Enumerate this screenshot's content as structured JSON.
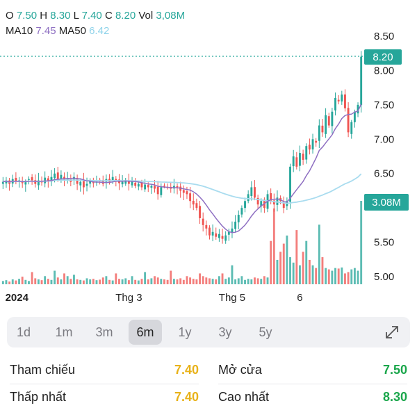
{
  "header": {
    "o_label": "O",
    "o_value": "7.50",
    "h_label": "H",
    "h_value": "8.30",
    "l_label": "L",
    "l_value": "7.40",
    "c_label": "C",
    "c_value": "8.20",
    "vol_label": "Vol",
    "vol_value": "3,08M",
    "ma10_label": "MA10",
    "ma10_value": "7.45",
    "ma50_label": "MA50",
    "ma50_value": "6.42"
  },
  "colors": {
    "up": "#26a69a",
    "down": "#ef5350",
    "ma10": "#8e6fc2",
    "ma50": "#a9dcef",
    "dotted": "#26a69a",
    "text": "#222222"
  },
  "chart_data": {
    "type": "candlestick",
    "y_ticks": [
      "8.50",
      "8.00",
      "7.50",
      "7.00",
      "6.50",
      "6.00",
      "5.50",
      "5.00"
    ],
    "y_tick_values": [
      8.5,
      8.0,
      7.5,
      7.0,
      6.5,
      6.0,
      5.5,
      5.0
    ],
    "ylim": [
      4.8,
      8.6
    ],
    "x_labels": [
      {
        "label": "2024",
        "index": 2,
        "bold": true
      },
      {
        "label": "Thg 3",
        "index": 39,
        "bold": false
      },
      {
        "label": "Thg 5",
        "index": 71,
        "bold": false
      },
      {
        "label": "6",
        "index": 92,
        "bold": false
      }
    ],
    "last_price": "8.20",
    "last_price_value": 8.2,
    "last_volume": "3.08M",
    "close": [
      6.38,
      6.4,
      6.35,
      6.42,
      6.38,
      6.4,
      6.36,
      6.38,
      6.42,
      6.4,
      6.35,
      6.4,
      6.38,
      6.44,
      6.4,
      6.45,
      6.5,
      6.42,
      6.48,
      6.4,
      6.42,
      6.38,
      6.45,
      6.35,
      6.38,
      6.3,
      6.35,
      6.4,
      6.36,
      6.38,
      6.4,
      6.35,
      6.42,
      6.38,
      6.45,
      6.4,
      6.36,
      6.38,
      6.4,
      6.35,
      6.38,
      6.32,
      6.35,
      6.3,
      6.34,
      6.3,
      6.32,
      6.28,
      6.2,
      6.3,
      6.32,
      6.3,
      6.28,
      6.32,
      6.3,
      6.25,
      6.22,
      6.2,
      6.1,
      6.05,
      6.0,
      5.85,
      5.75,
      5.7,
      5.6,
      5.65,
      5.58,
      5.62,
      5.55,
      5.6,
      5.65,
      5.7,
      5.8,
      5.9,
      6.0,
      6.1,
      6.2,
      6.3,
      6.15,
      6.05,
      6.1,
      6.0,
      6.2,
      6.1,
      6.05,
      6.15,
      6.1,
      6.0,
      6.1,
      6.6,
      6.75,
      6.6,
      6.8,
      6.7,
      6.9,
      6.85,
      7.0,
      6.95,
      7.2,
      7.1,
      7.35,
      7.2,
      7.4,
      7.6,
      7.55,
      7.65,
      7.45,
      7.1,
      7.25,
      7.4,
      7.5,
      8.2
    ],
    "volume": [
      0.12,
      0.15,
      0.1,
      0.18,
      0.14,
      0.2,
      0.28,
      0.16,
      0.12,
      0.45,
      0.22,
      0.18,
      0.15,
      0.3,
      0.2,
      0.16,
      0.5,
      0.25,
      0.18,
      0.4,
      0.3,
      0.2,
      0.35,
      0.18,
      0.16,
      0.14,
      0.22,
      0.18,
      0.2,
      0.15,
      0.17,
      0.25,
      0.3,
      0.16,
      0.14,
      0.4,
      0.2,
      0.18,
      0.22,
      0.15,
      0.3,
      0.16,
      0.14,
      0.2,
      0.45,
      0.18,
      0.22,
      0.3,
      0.25,
      0.2,
      0.18,
      0.16,
      0.5,
      0.2,
      0.18,
      0.22,
      0.16,
      0.3,
      0.25,
      0.2,
      0.18,
      0.4,
      0.3,
      0.25,
      0.22,
      0.2,
      0.18,
      0.3,
      0.4,
      0.2,
      0.25,
      0.7,
      0.18,
      0.22,
      0.3,
      0.16,
      0.2,
      0.18,
      0.25,
      0.22,
      0.2,
      0.3,
      0.25,
      1.6,
      2.8,
      0.9,
      1.2,
      1.5,
      1.8,
      1.0,
      0.8,
      2.0,
      0.7,
      1.2,
      1.6,
      0.9,
      0.7,
      0.6,
      2.2,
      1.0,
      0.6,
      0.55,
      0.5,
      0.6,
      0.58,
      0.62,
      0.4,
      0.45,
      0.55,
      0.6,
      0.5,
      3.08
    ]
  },
  "periods": {
    "items": [
      "1d",
      "1m",
      "3m",
      "6m",
      "1y",
      "3y",
      "5y"
    ],
    "active_index": 3
  },
  "stats": {
    "reference_label": "Tham chiếu",
    "reference_value": "7.40",
    "open_label": "Mở cửa",
    "open_value": "7.50",
    "low_label": "Thấp nhất",
    "low_value": "7.40",
    "high_label": "Cao nhất",
    "high_value": "8.30"
  }
}
